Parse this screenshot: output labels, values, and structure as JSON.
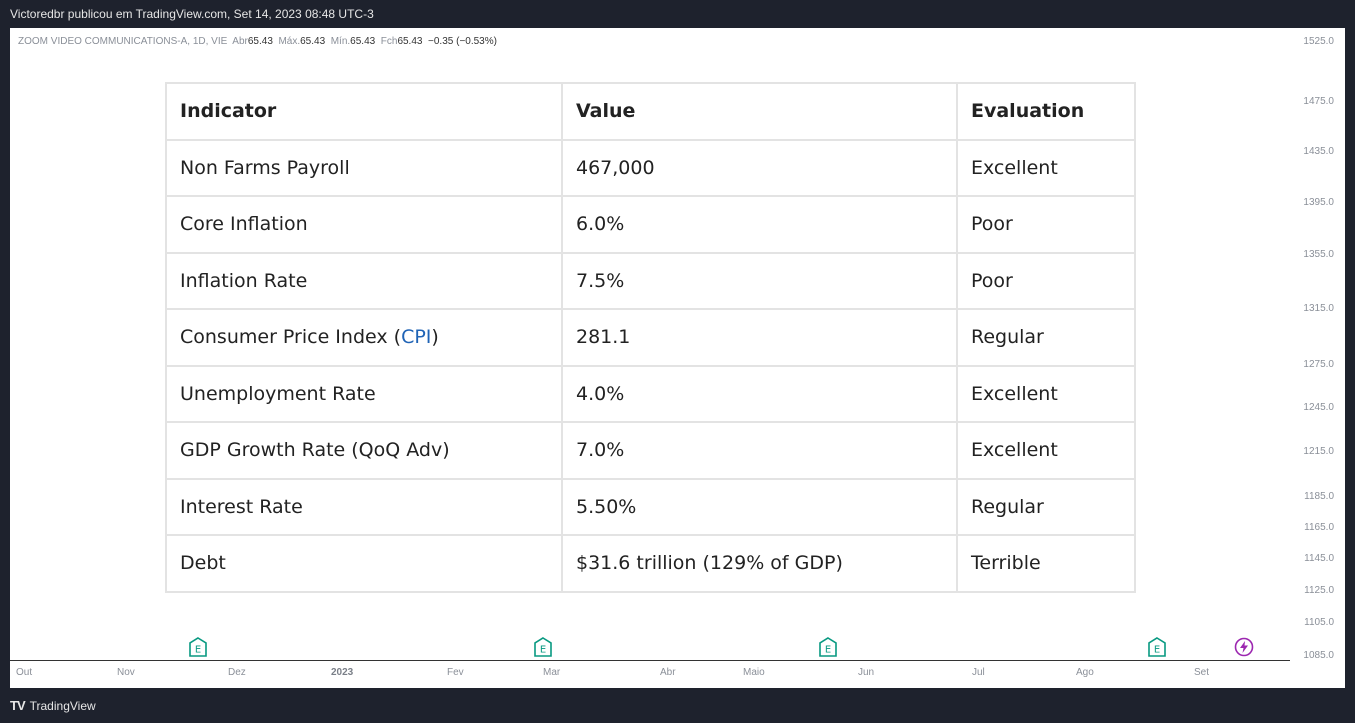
{
  "header": {
    "text": "Victoredbr publicou em TradingView.com, Set 14, 2023 08:48 UTC-3"
  },
  "legend": {
    "symbol": "ZOOM VIDEO COMMUNICATIONS-A, 1D, VIE",
    "open_label": "Abr",
    "open": "65.43",
    "high_label": "Máx.",
    "high": "65.43",
    "low_label": "Mín.",
    "low": "65.43",
    "close_label": "Fch",
    "close": "65.43",
    "change": "−0.35 (−0.53%)"
  },
  "price_axis": [
    "1525.0",
    "1475.0",
    "1435.0",
    "1395.0",
    "1355.0",
    "1315.0",
    "1275.0",
    "1245.0",
    "1215.0",
    "1185.0",
    "1165.0",
    "1145.0",
    "1125.0",
    "1105.0",
    "1085.0"
  ],
  "time_axis": [
    "Out",
    "Nov",
    "Dez",
    "2023",
    "Fev",
    "Mar",
    "Abr",
    "Maio",
    "Jun",
    "Jul",
    "Ago",
    "Set"
  ],
  "events": [
    {
      "icon": "earnings-icon",
      "label": "E"
    },
    {
      "icon": "earnings-icon",
      "label": "E"
    },
    {
      "icon": "earnings-icon",
      "label": "E"
    },
    {
      "icon": "earnings-icon",
      "label": "E"
    },
    {
      "icon": "lightning-icon",
      "label": "⚡"
    }
  ],
  "table": {
    "headers": [
      "Indicator",
      "Value",
      "Evaluation"
    ],
    "rows": [
      {
        "indicator": "Non Farms Payroll",
        "value": "467,000",
        "evaluation": "Excellent"
      },
      {
        "indicator": "Core Inflation",
        "value": "6.0%",
        "evaluation": "Poor"
      },
      {
        "indicator": "Inflation Rate",
        "value": "7.5%",
        "evaluation": "Poor"
      },
      {
        "indicator_prefix": "Consumer Price Index (",
        "indicator_link": "CPI",
        "indicator_suffix": ")",
        "value": "281.1",
        "evaluation": "Regular"
      },
      {
        "indicator": "Unemployment Rate",
        "value": "4.0%",
        "evaluation": "Excellent"
      },
      {
        "indicator": "GDP Growth Rate (QoQ Adv)",
        "value": "7.0%",
        "evaluation": "Excellent"
      },
      {
        "indicator": "Interest Rate",
        "value": "5.50%",
        "evaluation": "Regular"
      },
      {
        "indicator": "Debt",
        "value": "$31.6 trillion (129% of GDP)",
        "evaluation": "Terrible"
      }
    ]
  },
  "footer": {
    "brand": "TradingView",
    "logo": "TV"
  },
  "colors": {
    "background": "#1e222d",
    "event_green": "#089981",
    "event_purple": "#9c27b0",
    "link": "#1f63b5"
  }
}
